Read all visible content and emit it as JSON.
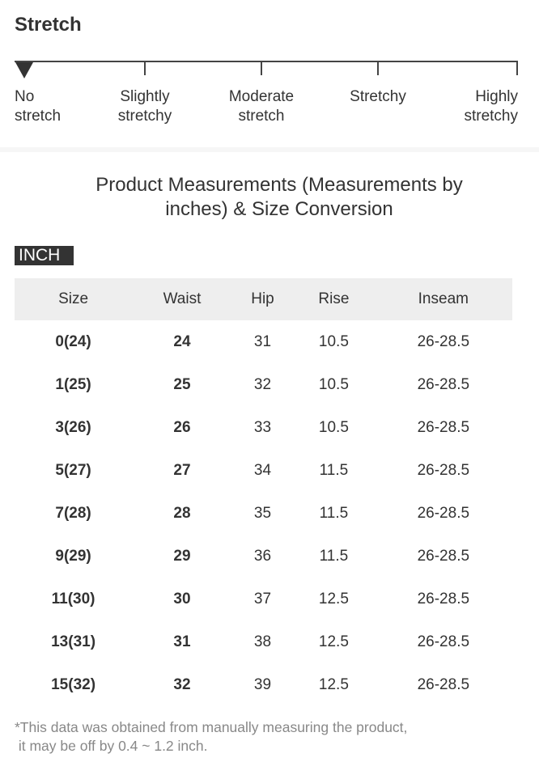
{
  "stretch": {
    "title": "Stretch",
    "level": 0,
    "labels": [
      [
        "No",
        "stretch"
      ],
      [
        "Slightly",
        "stretchy"
      ],
      [
        "Moderate",
        "stretch"
      ],
      [
        "Stretchy",
        ""
      ],
      [
        "Highly",
        "stretchy"
      ]
    ]
  },
  "measure": {
    "title_line1": "Product Measurements (Measurements by",
    "title_line2": "inches) & Size Conversion",
    "unit": "INCH",
    "headers": [
      "Size",
      "Waist",
      "Hip",
      "Rise",
      "Inseam"
    ],
    "rows": [
      [
        "0(24)",
        "24",
        "31",
        "10.5",
        "26-28.5"
      ],
      [
        "1(25)",
        "25",
        "32",
        "10.5",
        "26-28.5"
      ],
      [
        "3(26)",
        "26",
        "33",
        "10.5",
        "26-28.5"
      ],
      [
        "5(27)",
        "27",
        "34",
        "11.5",
        "26-28.5"
      ],
      [
        "7(28)",
        "28",
        "35",
        "11.5",
        "26-28.5"
      ],
      [
        "9(29)",
        "29",
        "36",
        "11.5",
        "26-28.5"
      ],
      [
        "11(30)",
        "30",
        "37",
        "12.5",
        "26-28.5"
      ],
      [
        "13(31)",
        "31",
        "38",
        "12.5",
        "26-28.5"
      ],
      [
        "15(32)",
        "32",
        "39",
        "12.5",
        "26-28.5"
      ]
    ],
    "note_line1": "*This data was obtained from manually measuring the product,",
    "note_line2": " it may be off by 0.4 ~ 1.2 inch."
  }
}
